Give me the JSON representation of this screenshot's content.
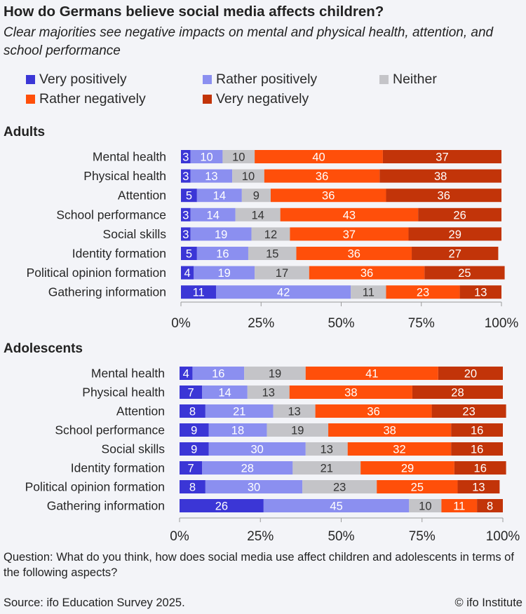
{
  "title": "How do Germans believe social media affects children?",
  "subtitle": "Clear majorities see negative impacts on mental and physical health, attention, and school performance",
  "colors": {
    "very_positively": "#3b36d6",
    "rather_positively": "#8b8ff0",
    "neither": "#c4c4c8",
    "rather_negatively": "#ff4f0a",
    "very_negatively": "#c23409"
  },
  "legend": [
    {
      "label": "Very positively",
      "color": "#3b36d6"
    },
    {
      "label": "Rather positively",
      "color": "#8b8ff0"
    },
    {
      "label": "Neither",
      "color": "#c4c4c8"
    },
    {
      "label": "Rather negatively",
      "color": "#ff4f0a"
    },
    {
      "label": "Very negatively",
      "color": "#c23409"
    }
  ],
  "chart_data": [
    {
      "type": "bar",
      "orientation": "horizontal-stacked",
      "title": "Adults",
      "categories": [
        "Mental health",
        "Physical health",
        "Attention",
        "School performance",
        "Social skills",
        "Identity formation",
        "Political opinion formation",
        "Gathering information"
      ],
      "series": [
        {
          "name": "Very positively",
          "values": [
            3,
            3,
            5,
            3,
            3,
            5,
            4,
            11
          ]
        },
        {
          "name": "Rather positively",
          "values": [
            10,
            13,
            14,
            14,
            19,
            16,
            19,
            42
          ]
        },
        {
          "name": "Neither",
          "values": [
            10,
            10,
            9,
            14,
            12,
            15,
            17,
            11
          ]
        },
        {
          "name": "Rather negatively",
          "values": [
            40,
            36,
            36,
            43,
            37,
            36,
            36,
            23
          ]
        },
        {
          "name": "Very negatively",
          "values": [
            37,
            38,
            36,
            26,
            29,
            27,
            25,
            13
          ]
        }
      ],
      "xlim": [
        0,
        100
      ],
      "xticks": [
        "0%",
        "25%",
        "50%",
        "75%",
        "100%"
      ]
    },
    {
      "type": "bar",
      "orientation": "horizontal-stacked",
      "title": "Adolescents",
      "categories": [
        "Mental health",
        "Physical health",
        "Attention",
        "School performance",
        "Social skills",
        "Identity formation",
        "Political opinion formation",
        "Gathering information"
      ],
      "series": [
        {
          "name": "Very positively",
          "values": [
            4,
            7,
            8,
            9,
            9,
            7,
            8,
            26
          ]
        },
        {
          "name": "Rather positively",
          "values": [
            16,
            14,
            21,
            18,
            30,
            28,
            30,
            45
          ]
        },
        {
          "name": "Neither",
          "values": [
            19,
            13,
            13,
            19,
            13,
            21,
            23,
            10
          ]
        },
        {
          "name": "Rather negatively",
          "values": [
            41,
            38,
            36,
            38,
            32,
            29,
            25,
            11
          ]
        },
        {
          "name": "Very negatively",
          "values": [
            20,
            28,
            23,
            16,
            16,
            16,
            13,
            8
          ]
        }
      ],
      "xlim": [
        0,
        100
      ],
      "xticks": [
        "0%",
        "25%",
        "50%",
        "75%",
        "100%"
      ]
    }
  ],
  "footer": {
    "question": "Question: What do you think, how does social media use affect children and adolescents in terms of the following aspects?",
    "source": "Source: ifo Education Survey 2025.",
    "credit": "© ifo Institute"
  }
}
